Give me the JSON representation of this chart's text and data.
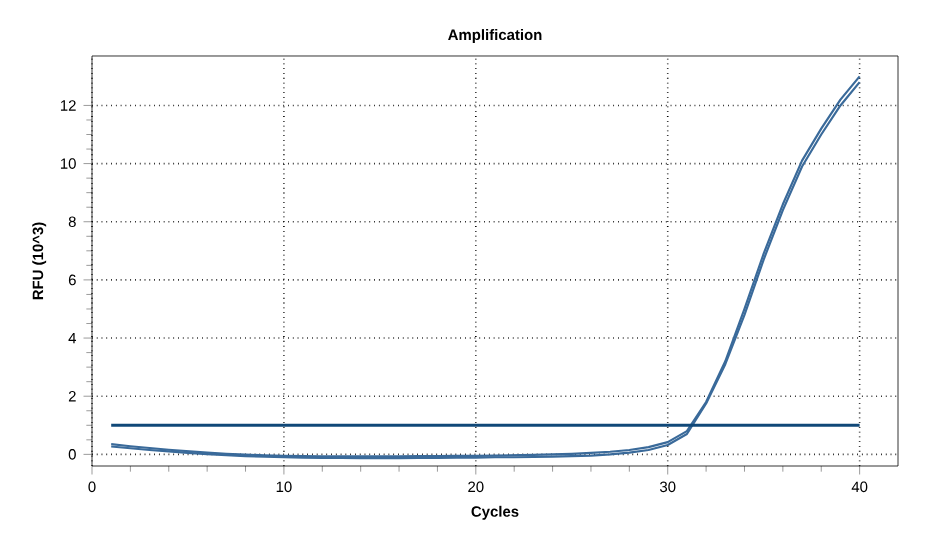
{
  "chart_data": {
    "type": "line",
    "title": "Amplification",
    "xlabel": "Cycles",
    "ylabel": "RFU (10^3)",
    "x": [
      1,
      2,
      3,
      4,
      5,
      6,
      7,
      8,
      9,
      10,
      11,
      12,
      13,
      14,
      15,
      16,
      17,
      18,
      19,
      20,
      21,
      22,
      23,
      24,
      25,
      26,
      27,
      28,
      29,
      30,
      31,
      32,
      33,
      34,
      35,
      36,
      37,
      38,
      39,
      40
    ],
    "series": [
      {
        "color": "#3a6a9a",
        "values": [
          0.35,
          0.28,
          0.22,
          0.16,
          0.11,
          0.06,
          0.02,
          -0.01,
          -0.03,
          -0.05,
          -0.06,
          -0.07,
          -0.07,
          -0.07,
          -0.07,
          -0.07,
          -0.06,
          -0.06,
          -0.05,
          -0.05,
          -0.04,
          -0.03,
          -0.02,
          0.0,
          0.02,
          0.05,
          0.09,
          0.15,
          0.25,
          0.42,
          0.8,
          1.8,
          3.2,
          5.0,
          6.9,
          8.6,
          10.1,
          11.2,
          12.2,
          13.0
        ]
      },
      {
        "color": "#3a6a9a",
        "values": [
          0.27,
          0.21,
          0.15,
          0.1,
          0.05,
          0.01,
          -0.03,
          -0.06,
          -0.08,
          -0.1,
          -0.11,
          -0.12,
          -0.12,
          -0.13,
          -0.13,
          -0.13,
          -0.12,
          -0.12,
          -0.11,
          -0.11,
          -0.1,
          -0.1,
          -0.09,
          -0.08,
          -0.06,
          -0.04,
          0.0,
          0.06,
          0.15,
          0.32,
          0.7,
          1.75,
          3.1,
          4.8,
          6.7,
          8.4,
          9.9,
          11.0,
          12.0,
          12.8
        ]
      }
    ],
    "xlim": [
      0,
      42
    ],
    "ylim": [
      -0.4,
      13.7
    ],
    "xticks": [
      0,
      10,
      20,
      30,
      40
    ],
    "yticks": [
      0,
      2,
      4,
      6,
      8,
      10,
      12
    ],
    "ref_lines": [
      {
        "axis": "y",
        "value": 1,
        "color": "#104878"
      }
    ],
    "grid": true,
    "marker": "none",
    "line_style": "solid"
  }
}
